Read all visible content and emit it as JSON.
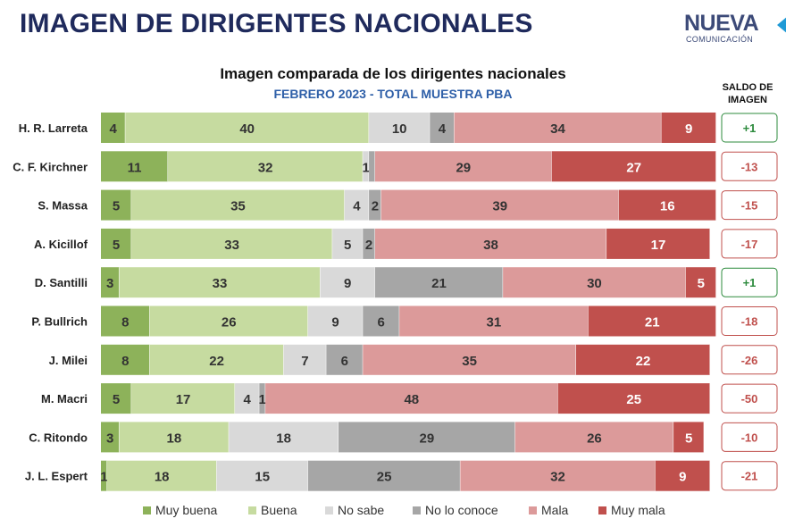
{
  "page": {
    "title": "IMAGEN DE DIRIGENTES NACIONALES",
    "logo_main": "NUEVA",
    "logo_sub": "COMUNICACIÓN"
  },
  "chart_data": {
    "type": "bar",
    "orientation": "horizontal",
    "stacked": true,
    "percent": true,
    "title": "Imagen comparada de los dirigentes nacionales",
    "subtitle": "FEBRERO 2023 - TOTAL MUESTRA PBA",
    "categories": [
      "H. R. Larreta",
      "C. F. Kirchner",
      "S. Massa",
      "A. Kicillof",
      "D. Santilli",
      "P. Bullrich",
      "J. Milei",
      "M. Macri",
      "C. Ritondo",
      "J. L. Espert"
    ],
    "series": [
      {
        "name": "Muy buena",
        "color": "#8db25a",
        "values": [
          4,
          11,
          5,
          5,
          3,
          8,
          8,
          5,
          3,
          1
        ]
      },
      {
        "name": "Buena",
        "color": "#c6dba0",
        "values": [
          40,
          32,
          35,
          33,
          33,
          26,
          22,
          17,
          18,
          18
        ]
      },
      {
        "name": "No sabe",
        "color": "#d9d9d9",
        "values": [
          10,
          1,
          4,
          5,
          9,
          9,
          7,
          4,
          18,
          15
        ]
      },
      {
        "name": "No lo conoce",
        "color": "#a6a6a6",
        "values": [
          4,
          1,
          2,
          2,
          21,
          6,
          6,
          1,
          29,
          25
        ]
      },
      {
        "name": "Mala",
        "color": "#dc9a9a",
        "values": [
          34,
          29,
          39,
          38,
          30,
          31,
          35,
          48,
          26,
          32
        ]
      },
      {
        "name": "Muy mala",
        "color": "#c0504d",
        "values": [
          9,
          27,
          16,
          17,
          5,
          21,
          22,
          25,
          5,
          9
        ]
      }
    ],
    "visible_labels": [
      [
        "4",
        "40",
        "10",
        "4",
        "34",
        "9"
      ],
      [
        "11",
        "32",
        "1",
        "",
        "29",
        "27"
      ],
      [
        "5",
        "35",
        "4",
        "2",
        "39",
        "16"
      ],
      [
        "5",
        "33",
        "5",
        "2",
        "38",
        "17"
      ],
      [
        "3",
        "33",
        "9",
        "21",
        "30",
        "5"
      ],
      [
        "8",
        "26",
        "9",
        "6",
        "31",
        "21"
      ],
      [
        "8",
        "22",
        "7",
        "6",
        "35",
        "22"
      ],
      [
        "5",
        "17",
        "4",
        "1",
        "48",
        "25"
      ],
      [
        "3",
        "18",
        "18",
        "29",
        "26",
        "5"
      ],
      [
        "1",
        "18",
        "15",
        "25",
        "32",
        "9"
      ]
    ],
    "saldo": {
      "header": "SALDO DE IMAGEN",
      "values": [
        "+1",
        "-13",
        "-15",
        "-17",
        "+1",
        "-18",
        "-26",
        "-50",
        "-10",
        "-21"
      ],
      "positive_color": "#2e8b3e",
      "negative_color": "#c0504d"
    },
    "legend_position": "bottom",
    "grid": false
  }
}
